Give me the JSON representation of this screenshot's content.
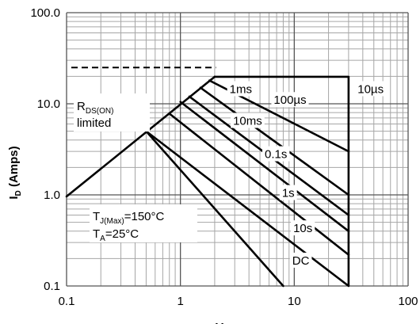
{
  "chart_data": {
    "type": "line",
    "x_scale": "log",
    "y_scale": "log",
    "xlim": [
      0.1,
      100
    ],
    "ylim": [
      0.1,
      100
    ],
    "grid": true,
    "xlabel": "V",
    "ylabel_main": "I",
    "ylabel_sub": "D",
    "ylabel_unit": " (Amps)",
    "x_ticks": [
      {
        "value": 0.1,
        "label": "0.1"
      },
      {
        "value": 1,
        "label": "1"
      },
      {
        "value": 10,
        "label": "10"
      },
      {
        "value": 100,
        "label": "100"
      }
    ],
    "y_ticks": [
      {
        "value": 0.1,
        "label": "0.1"
      },
      {
        "value": 1,
        "label": "1.0"
      },
      {
        "value": 10,
        "label": "10.0"
      },
      {
        "value": 100,
        "label": "100.0"
      }
    ],
    "rds_limit_line": [
      [
        0.1,
        0.96
      ],
      [
        2.0,
        19.8
      ]
    ],
    "current_limit_dashed": {
      "y": 25,
      "x_from": 0.1,
      "x_to": 2.05
    },
    "vds_max_line": {
      "x": 30,
      "y_from": 0.1,
      "y_to": 19.8
    },
    "series": [
      {
        "name": "10µs",
        "points": [
          [
            2.0,
            19.8
          ],
          [
            30,
            19.8
          ]
        ]
      },
      {
        "name": "100µs",
        "points": [
          [
            1.8,
            18
          ],
          [
            30,
            3.0
          ]
        ]
      },
      {
        "name": "1ms",
        "points": [
          [
            1.5,
            15
          ],
          [
            30,
            1.0
          ]
        ]
      },
      {
        "name": "10ms",
        "points": [
          [
            1.2,
            12
          ],
          [
            30,
            0.6
          ]
        ]
      },
      {
        "name": "0.1s",
        "points": [
          [
            1.0,
            10.5
          ],
          [
            30,
            0.4
          ]
        ]
      },
      {
        "name": "1s",
        "points": [
          [
            0.8,
            7.8
          ],
          [
            30,
            0.22
          ]
        ]
      },
      {
        "name": "10s",
        "points": [
          [
            0.5,
            5.0
          ],
          [
            30,
            0.1
          ]
        ]
      },
      {
        "name": "DC",
        "points": [
          [
            0.5,
            5.0
          ],
          [
            8,
            0.1
          ]
        ]
      }
    ],
    "curve_labels": [
      {
        "text": "10µs",
        "x": 36,
        "y": 14.5
      },
      {
        "text": "100µs",
        "x": 6.6,
        "y": 11
      },
      {
        "text": "1ms",
        "x": 2.7,
        "y": 14.5
      },
      {
        "text": "10ms",
        "x": 2.9,
        "y": 6.5
      },
      {
        "text": "0.1s",
        "x": 5.5,
        "y": 2.8
      },
      {
        "text": "1s",
        "x": 7.8,
        "y": 1.05
      },
      {
        "text": "10s",
        "x": 9.8,
        "y": 0.43
      },
      {
        "text": "DC",
        "x": 9.6,
        "y": 0.19
      }
    ],
    "annotations": {
      "rds": {
        "main": "R",
        "sub": "DS(ON)",
        "line2": "limited"
      },
      "tj": {
        "main": "T",
        "sub": "J(Max)",
        "rest": "=150°C"
      },
      "ta": {
        "main": "T",
        "sub": "A",
        "rest": "=25°C"
      }
    }
  }
}
